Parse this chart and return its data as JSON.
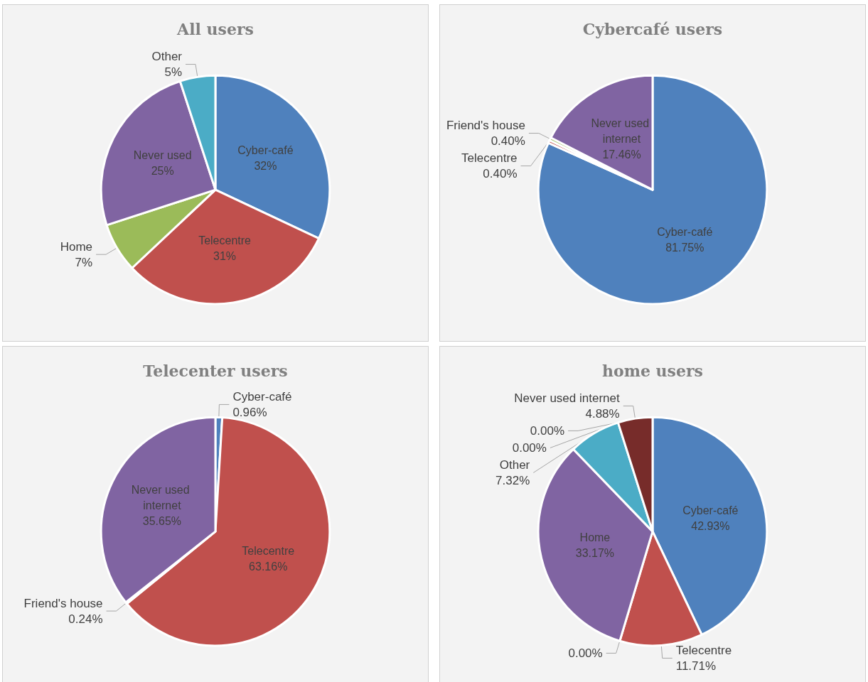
{
  "chart_data": [
    {
      "type": "pie",
      "title": "All users",
      "categories": [
        "Cyber-café",
        "Telecentre",
        "Home",
        "Never used",
        "Other"
      ],
      "values": [
        32,
        31,
        7,
        25,
        5
      ],
      "colors": [
        "#4f81bd",
        "#c0504d",
        "#9bbb59",
        "#8064a2",
        "#4bacc6"
      ],
      "value_labels": [
        "32%",
        "31%",
        "7%",
        "25%",
        "5%"
      ]
    },
    {
      "type": "pie",
      "title": "Cybercafé users",
      "categories": [
        "Cyber-café",
        "Telecentre",
        "Friend's house",
        "Never used internet"
      ],
      "values": [
        81.75,
        0.4,
        0.4,
        17.46
      ],
      "colors": [
        "#4f81bd",
        "#c0504d",
        "#9bbb59",
        "#8064a2"
      ],
      "value_labels": [
        "81.75%",
        "0.40%",
        "0.40%",
        "17.46%"
      ]
    },
    {
      "type": "pie",
      "title": "Telecenter users",
      "categories": [
        "Cyber-café",
        "Telecentre",
        "Friend's house",
        "Never used internet"
      ],
      "values": [
        0.96,
        63.16,
        0.24,
        35.65
      ],
      "colors": [
        "#4f81bd",
        "#c0504d",
        "#9bbb59",
        "#8064a2"
      ],
      "value_labels": [
        "0.96%",
        "63.16%",
        "0.24%",
        "35.65%"
      ]
    },
    {
      "type": "pie",
      "title": "home users",
      "categories": [
        "Cyber-café",
        "Telecentre",
        null,
        "Home",
        "Other",
        null,
        null,
        "Never used internet"
      ],
      "values": [
        42.93,
        11.71,
        0,
        33.17,
        7.32,
        0,
        0,
        4.88
      ],
      "colors": [
        "#4f81bd",
        "#c0504d",
        "#9bbb59",
        "#8064a2",
        "#4bacc6",
        "#f79646",
        "#2c4d75",
        "#772c2a"
      ],
      "value_labels": [
        "42.93%",
        "11.71%",
        "0.00%",
        "33.17%",
        "7.32%",
        "0.00%",
        "0.00%",
        "4.88%"
      ]
    }
  ]
}
